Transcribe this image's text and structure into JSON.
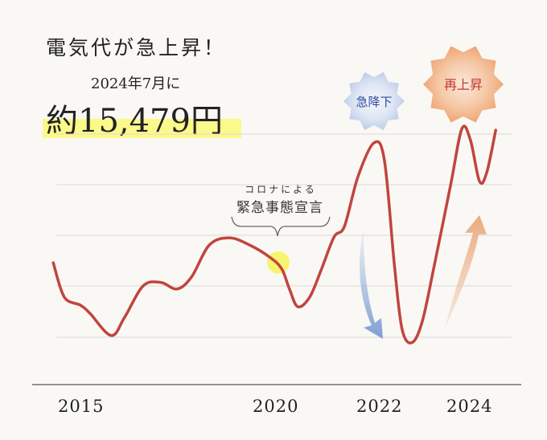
{
  "header": {
    "title": "電気代が急上昇！",
    "subtitle": "2024年7月に",
    "amount": "約15,479円"
  },
  "annotations": {
    "covid_small": "コロナによる",
    "covid_main": "緊急事態宣言",
    "drop": "急降下",
    "rise": "再上昇"
  },
  "colors": {
    "line": "#c0453f",
    "highlight": "#fbf98a",
    "drop": "#8fb0dc",
    "rise": "#eeb48e",
    "drop_text": "#2f4f9e",
    "rise_text": "#c8332c",
    "grid": "#d8d6d2",
    "axis": "#555555"
  },
  "chart_data": {
    "type": "line",
    "title": "",
    "xlabel": "",
    "ylabel": "",
    "x_ticks": [
      "2015",
      "2020",
      "2022",
      "2024"
    ],
    "grid": true,
    "y_scale": "relative, unlabeled",
    "ylim": [
      0,
      5.5
    ],
    "series": [
      {
        "x": [
          2014.31,
          2014.59,
          2015.0,
          2015.24,
          2015.78,
          2016.12,
          2016.59,
          2017.04,
          2017.45,
          2017.82,
          2018.27,
          2018.78,
          2019.29,
          2019.8,
          2020.08,
          2020.23,
          2020.39,
          2020.62,
          2020.85,
          2021.09,
          2021.29,
          2021.55,
          2021.86,
          2022.07,
          2022.29,
          2022.46,
          2022.68,
          2022.91,
          2023.18,
          2023.54,
          2023.79,
          2023.98,
          2024.18,
          2024.34,
          2024.54
        ],
        "y": [
          2.41,
          1.73,
          1.57,
          1.41,
          0.97,
          1.33,
          1.95,
          2.02,
          1.89,
          2.13,
          2.76,
          2.9,
          2.76,
          2.52,
          2.29,
          1.89,
          1.54,
          1.73,
          2.29,
          2.92,
          3.13,
          4.11,
          4.78,
          4.43,
          2.37,
          1.1,
          0.83,
          1.25,
          2.37,
          3.95,
          5.06,
          4.83,
          4.02,
          4.19,
          5.03
        ]
      }
    ],
    "highlight_point": {
      "x": 2020.0,
      "y": 2.41
    }
  }
}
